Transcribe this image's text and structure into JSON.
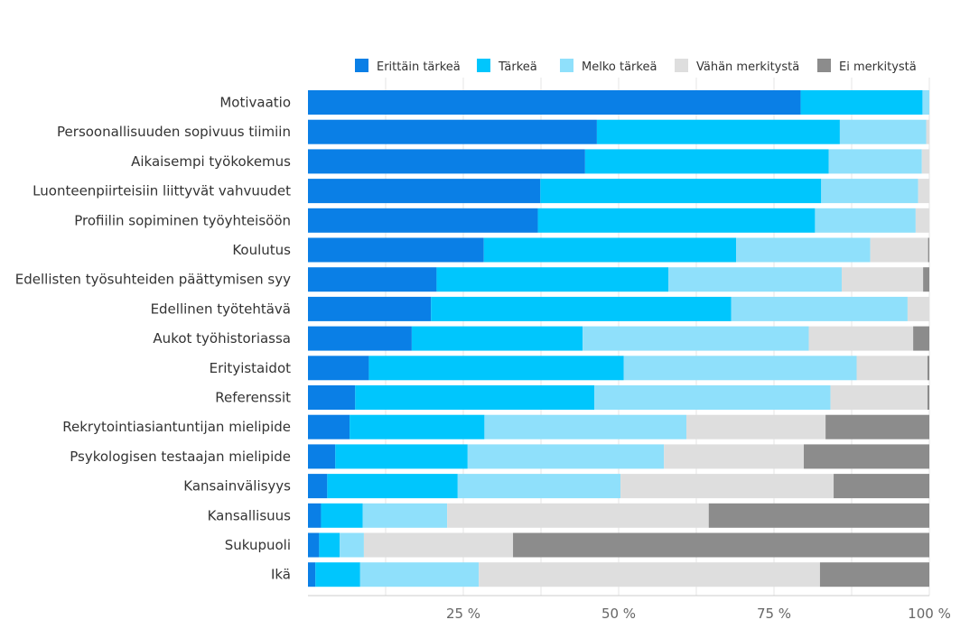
{
  "chart_data": {
    "type": "bar",
    "orientation": "horizontal",
    "stacked": true,
    "categories": [
      "Motivaatio",
      "Persoonallisuuden sopivuus tiimiin",
      "Aikaisempi työkokemus",
      "Luonteenpiirteisiin liittyvät vahvuudet",
      "Profiilin sopiminen työyhteisöön",
      "Koulutus",
      "Edellisten työsuhteiden päättymisen syy",
      "Edellinen työtehtävä",
      "Aukot työhistoriassa",
      "Erityistaidot",
      "Referenssit",
      "Rekrytointiasiantuntijan mielipide",
      "Psykologisen testaajan mielipide",
      "Kansainvälisyys",
      "Kansallisuus",
      "Sukupuoli",
      "Ikä"
    ],
    "series": [
      {
        "name": "Erittäin tärkeä",
        "color": "#0a7fe6",
        "values": [
          79.3,
          46.5,
          44.6,
          37.4,
          37.0,
          28.3,
          20.7,
          19.8,
          16.7,
          9.8,
          7.6,
          6.7,
          4.4,
          3.1,
          2.1,
          1.8,
          1.2
        ]
      },
      {
        "name": "Tärkeä",
        "color": "#00c6fd",
        "values": [
          19.6,
          39.1,
          39.2,
          45.2,
          44.6,
          40.6,
          37.3,
          48.3,
          27.5,
          41.0,
          38.5,
          21.7,
          21.3,
          21.0,
          6.7,
          3.3,
          7.2
        ]
      },
      {
        "name": "Melko tärkeä",
        "color": "#8fe0fb",
        "values": [
          1.1,
          13.9,
          15.0,
          15.6,
          16.2,
          21.6,
          27.9,
          28.4,
          36.4,
          37.5,
          38.0,
          32.5,
          31.6,
          26.2,
          13.6,
          3.9,
          19.1
        ]
      },
      {
        "name": "Vähän merkitystä",
        "color": "#dedede",
        "values": [
          0.0,
          0.5,
          1.2,
          1.8,
          2.2,
          9.3,
          13.1,
          3.5,
          16.8,
          11.4,
          15.6,
          22.4,
          22.5,
          34.3,
          42.1,
          24.0,
          54.9
        ]
      },
      {
        "name": "Ei merkitystä",
        "color": "#8c8c8c",
        "values": [
          0.0,
          0.0,
          0.0,
          0.0,
          0.0,
          0.2,
          1.0,
          0.0,
          2.6,
          0.3,
          0.3,
          16.7,
          20.2,
          15.4,
          35.5,
          67.0,
          17.6
        ]
      }
    ],
    "x_ticks": [
      {
        "value": 25,
        "label": "25 %"
      },
      {
        "value": 50,
        "label": "50 %"
      },
      {
        "value": 75,
        "label": "75 %"
      },
      {
        "value": 100,
        "label": "100 %"
      }
    ],
    "xlim": [
      0,
      100
    ],
    "legend_position": "top-right",
    "title": "",
    "xlabel": "",
    "ylabel": ""
  }
}
